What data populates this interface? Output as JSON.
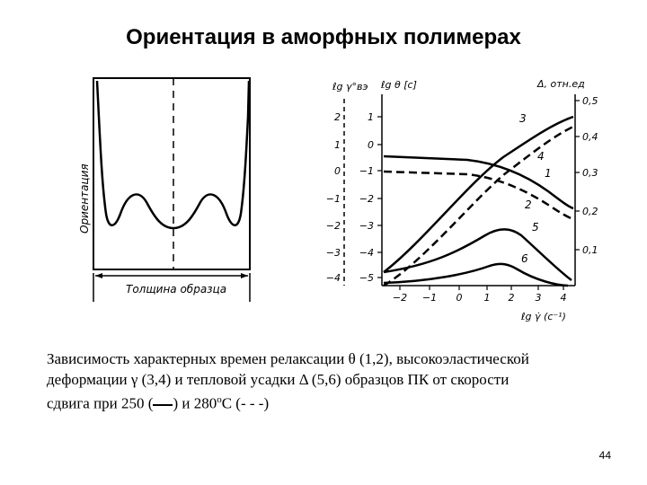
{
  "slide": {
    "title": "Ориентация в аморфных полимерах",
    "page_number": "44"
  },
  "left_figure": {
    "ylabel": "Ориентация",
    "xlabel": "Толщина образца"
  },
  "right_figure": {
    "left_axis_label": "ℓg γ°вэ",
    "mid_axis_label": "ℓg θ [с]",
    "right_axis_label": "Δ, отн.ед",
    "x_axis_label": "ℓg γ̇ (с⁻¹)",
    "left_ticks": [
      "2",
      "1",
      "0",
      "−1",
      "−2",
      "−3",
      "−4"
    ],
    "mid_ticks": [
      "1",
      "0",
      "−1",
      "−2",
      "−3",
      "−4",
      "−5"
    ],
    "right_ticks": [
      "0,5",
      "0,4",
      "0,3",
      "0,2",
      "0,1"
    ],
    "x_ticks": [
      "−2",
      "−1",
      "0",
      "1",
      "2",
      "3",
      "4"
    ],
    "curve_labels": [
      "3",
      "4",
      "1",
      "2",
      "5",
      "6"
    ]
  },
  "caption": {
    "line1": "Зависимость характерных времен релаксации θ (1,2), высокоэластической",
    "line2": "деформации γ (3,4) и тепловой усадки Δ (5,6) образцов ПК от скорости",
    "line3_a": "сдвига при 250 (",
    "line3_b": ") и 280",
    "line3_sup": "о",
    "line3_c": "С (- - -)"
  }
}
